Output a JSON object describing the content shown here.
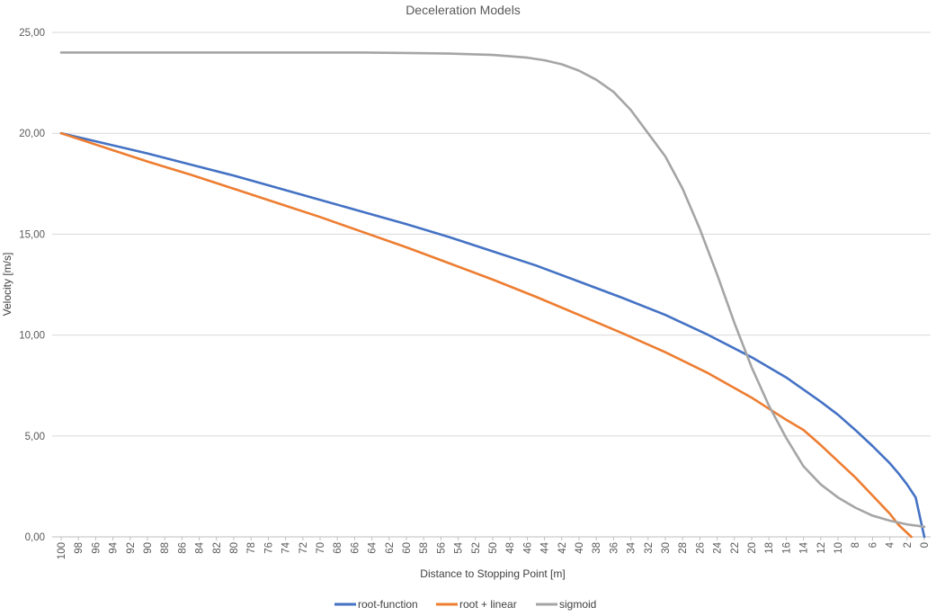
{
  "chart_data": {
    "type": "line",
    "title": "Deceleration Models",
    "xlabel": "Distance to Stopping Point [m]",
    "ylabel": "Velocity [m/s]",
    "ylim": [
      0,
      25
    ],
    "yticks": [
      "0,00",
      "5,00",
      "10,00",
      "15,00",
      "20,00",
      "25,00"
    ],
    "x_reversed": true,
    "xlim": [
      0,
      100
    ],
    "x_tick_step": 2,
    "grid": "horizontal",
    "legend_position": "bottom",
    "series": [
      {
        "name": "root-function",
        "color": "#4472C4",
        "x": [
          100,
          95,
          90,
          85,
          80,
          75,
          70,
          65,
          60,
          55,
          50,
          45,
          40,
          35,
          30,
          25,
          20,
          16,
          12,
          10,
          8,
          6,
          4,
          3,
          2,
          1,
          0
        ],
        "values": [
          20.0,
          19.5,
          19.0,
          18.45,
          17.9,
          17.3,
          16.7,
          16.1,
          15.5,
          14.85,
          14.15,
          13.45,
          12.65,
          11.85,
          11.0,
          10.0,
          8.9,
          7.9,
          6.7,
          6.05,
          5.3,
          4.5,
          3.65,
          3.15,
          2.6,
          1.95,
          0.0
        ]
      },
      {
        "name": "root + linear",
        "color": "#ED7D31",
        "x": [
          100,
          95,
          90,
          85,
          80,
          75,
          70,
          65,
          60,
          55,
          50,
          45,
          40,
          35,
          30,
          25,
          20,
          16,
          14,
          12,
          10,
          8,
          6,
          4,
          3,
          2,
          1.5
        ],
        "values": [
          20.0,
          19.3,
          18.6,
          17.95,
          17.25,
          16.55,
          15.85,
          15.1,
          14.35,
          13.55,
          12.75,
          11.9,
          11.0,
          10.1,
          9.15,
          8.1,
          6.9,
          5.8,
          5.3,
          4.55,
          3.75,
          2.95,
          2.05,
          1.15,
          0.6,
          0.2,
          0.0
        ]
      },
      {
        "name": "sigmoid",
        "color": "#A5A5A5",
        "x": [
          100,
          70,
          65,
          60,
          55,
          50,
          46,
          44,
          42,
          40,
          38,
          36,
          34,
          32,
          30,
          28,
          26,
          24,
          22,
          20,
          18,
          16,
          14,
          12,
          10,
          8,
          6,
          4,
          2,
          0
        ],
        "values": [
          24.0,
          24.0,
          24.0,
          23.98,
          23.95,
          23.88,
          23.75,
          23.62,
          23.42,
          23.1,
          22.65,
          22.05,
          21.15,
          20.0,
          18.85,
          17.25,
          15.25,
          13.0,
          10.6,
          8.4,
          6.5,
          4.9,
          3.5,
          2.6,
          1.95,
          1.45,
          1.05,
          0.8,
          0.62,
          0.5
        ]
      }
    ]
  }
}
